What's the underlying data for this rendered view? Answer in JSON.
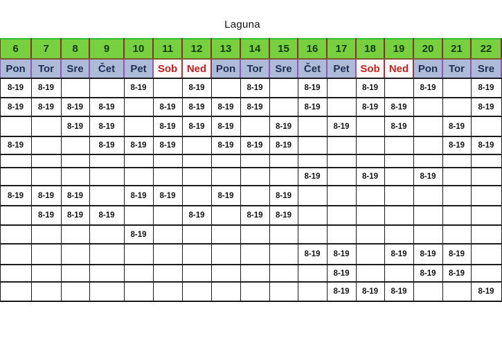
{
  "title": "Laguna",
  "shift_label": "8-19",
  "columns": [
    {
      "date": "6",
      "day": "Pon",
      "weekend": false
    },
    {
      "date": "7",
      "day": "Tor",
      "weekend": false
    },
    {
      "date": "8",
      "day": "Sre",
      "weekend": false
    },
    {
      "date": "9",
      "day": "Čet",
      "weekend": false
    },
    {
      "date": "10",
      "day": "Pet",
      "weekend": false
    },
    {
      "date": "11",
      "day": "Sob",
      "weekend": true
    },
    {
      "date": "12",
      "day": "Ned",
      "weekend": true
    },
    {
      "date": "13",
      "day": "Pon",
      "weekend": false
    },
    {
      "date": "14",
      "day": "Tor",
      "weekend": false
    },
    {
      "date": "15",
      "day": "Sre",
      "weekend": false
    },
    {
      "date": "16",
      "day": "Čet",
      "weekend": false
    },
    {
      "date": "17",
      "day": "Pet",
      "weekend": false
    },
    {
      "date": "18",
      "day": "Sob",
      "weekend": true
    },
    {
      "date": "19",
      "day": "Ned",
      "weekend": true
    },
    {
      "date": "20",
      "day": "Pon",
      "weekend": false
    },
    {
      "date": "21",
      "day": "Tor",
      "weekend": false
    },
    {
      "date": "22",
      "day": "Sre",
      "weekend": false
    }
  ],
  "rows": [
    [
      "8-19",
      "8-19",
      "",
      "",
      "8-19",
      "",
      "8-19",
      "",
      "8-19",
      "",
      "8-19",
      "",
      "8-19",
      "",
      "8-19",
      "",
      "8-19"
    ],
    [
      "8-19",
      "8-19",
      "8-19",
      "8-19",
      "",
      "8-19",
      "8-19",
      "8-19",
      "8-19",
      "",
      "8-19",
      "",
      "8-19",
      "8-19",
      "",
      "",
      "8-19"
    ],
    [
      "",
      "",
      "8-19",
      "8-19",
      "",
      "8-19",
      "8-19",
      "8-19",
      "",
      "8-19",
      "",
      "8-19",
      "",
      "8-19",
      "",
      "8-19",
      ""
    ],
    [
      "8-19",
      "",
      "",
      "8-19",
      "8-19",
      "8-19",
      "",
      "8-19",
      "8-19",
      "8-19",
      "",
      "",
      "",
      "",
      "",
      "8-19",
      "8-19"
    ],
    [
      "",
      "",
      "",
      "",
      "",
      "",
      "",
      "",
      "",
      "",
      "",
      "",
      "",
      "",
      "",
      "",
      ""
    ],
    [
      "",
      "",
      "",
      "",
      "",
      "",
      "",
      "",
      "",
      "",
      "8-19",
      "",
      "8-19",
      "",
      "8-19",
      "",
      ""
    ],
    [
      "8-19",
      "8-19",
      "8-19",
      "",
      "8-19",
      "8-19",
      "",
      "8-19",
      "",
      "8-19",
      "",
      "",
      "",
      "",
      "",
      "",
      ""
    ],
    [
      "",
      "8-19",
      "8-19",
      "8-19",
      "",
      "",
      "8-19",
      "",
      "8-19",
      "8-19",
      "",
      "",
      "",
      "",
      "",
      "",
      ""
    ],
    [
      "",
      "",
      "",
      "",
      "8-19",
      "",
      "",
      "",
      "",
      "",
      "",
      "",
      "",
      "",
      "",
      "",
      ""
    ],
    [
      "",
      "",
      "",
      "",
      "",
      "",
      "",
      "",
      "",
      "",
      "8-19",
      "8-19",
      "",
      "8-19",
      "8-19",
      "8-19",
      ""
    ],
    [
      "",
      "",
      "",
      "",
      "",
      "",
      "",
      "",
      "",
      "",
      "",
      "8-19",
      "",
      "",
      "8-19",
      "8-19",
      ""
    ],
    [
      "",
      "",
      "",
      "",
      "",
      "",
      "",
      "",
      "",
      "",
      "",
      "8-19",
      "8-19",
      "8-19",
      "",
      "",
      "8-19"
    ]
  ],
  "colors": {
    "date_header_bg": "#77d13e",
    "date_header_text": "#123b00",
    "weekday_bg": "#adbbd9",
    "weekday_text": "#1b2f55",
    "weekend_bg": "#fdf6f6",
    "weekend_text": "#c32222",
    "grid_border": "#1a1a1a",
    "shift_text": "#141414"
  }
}
